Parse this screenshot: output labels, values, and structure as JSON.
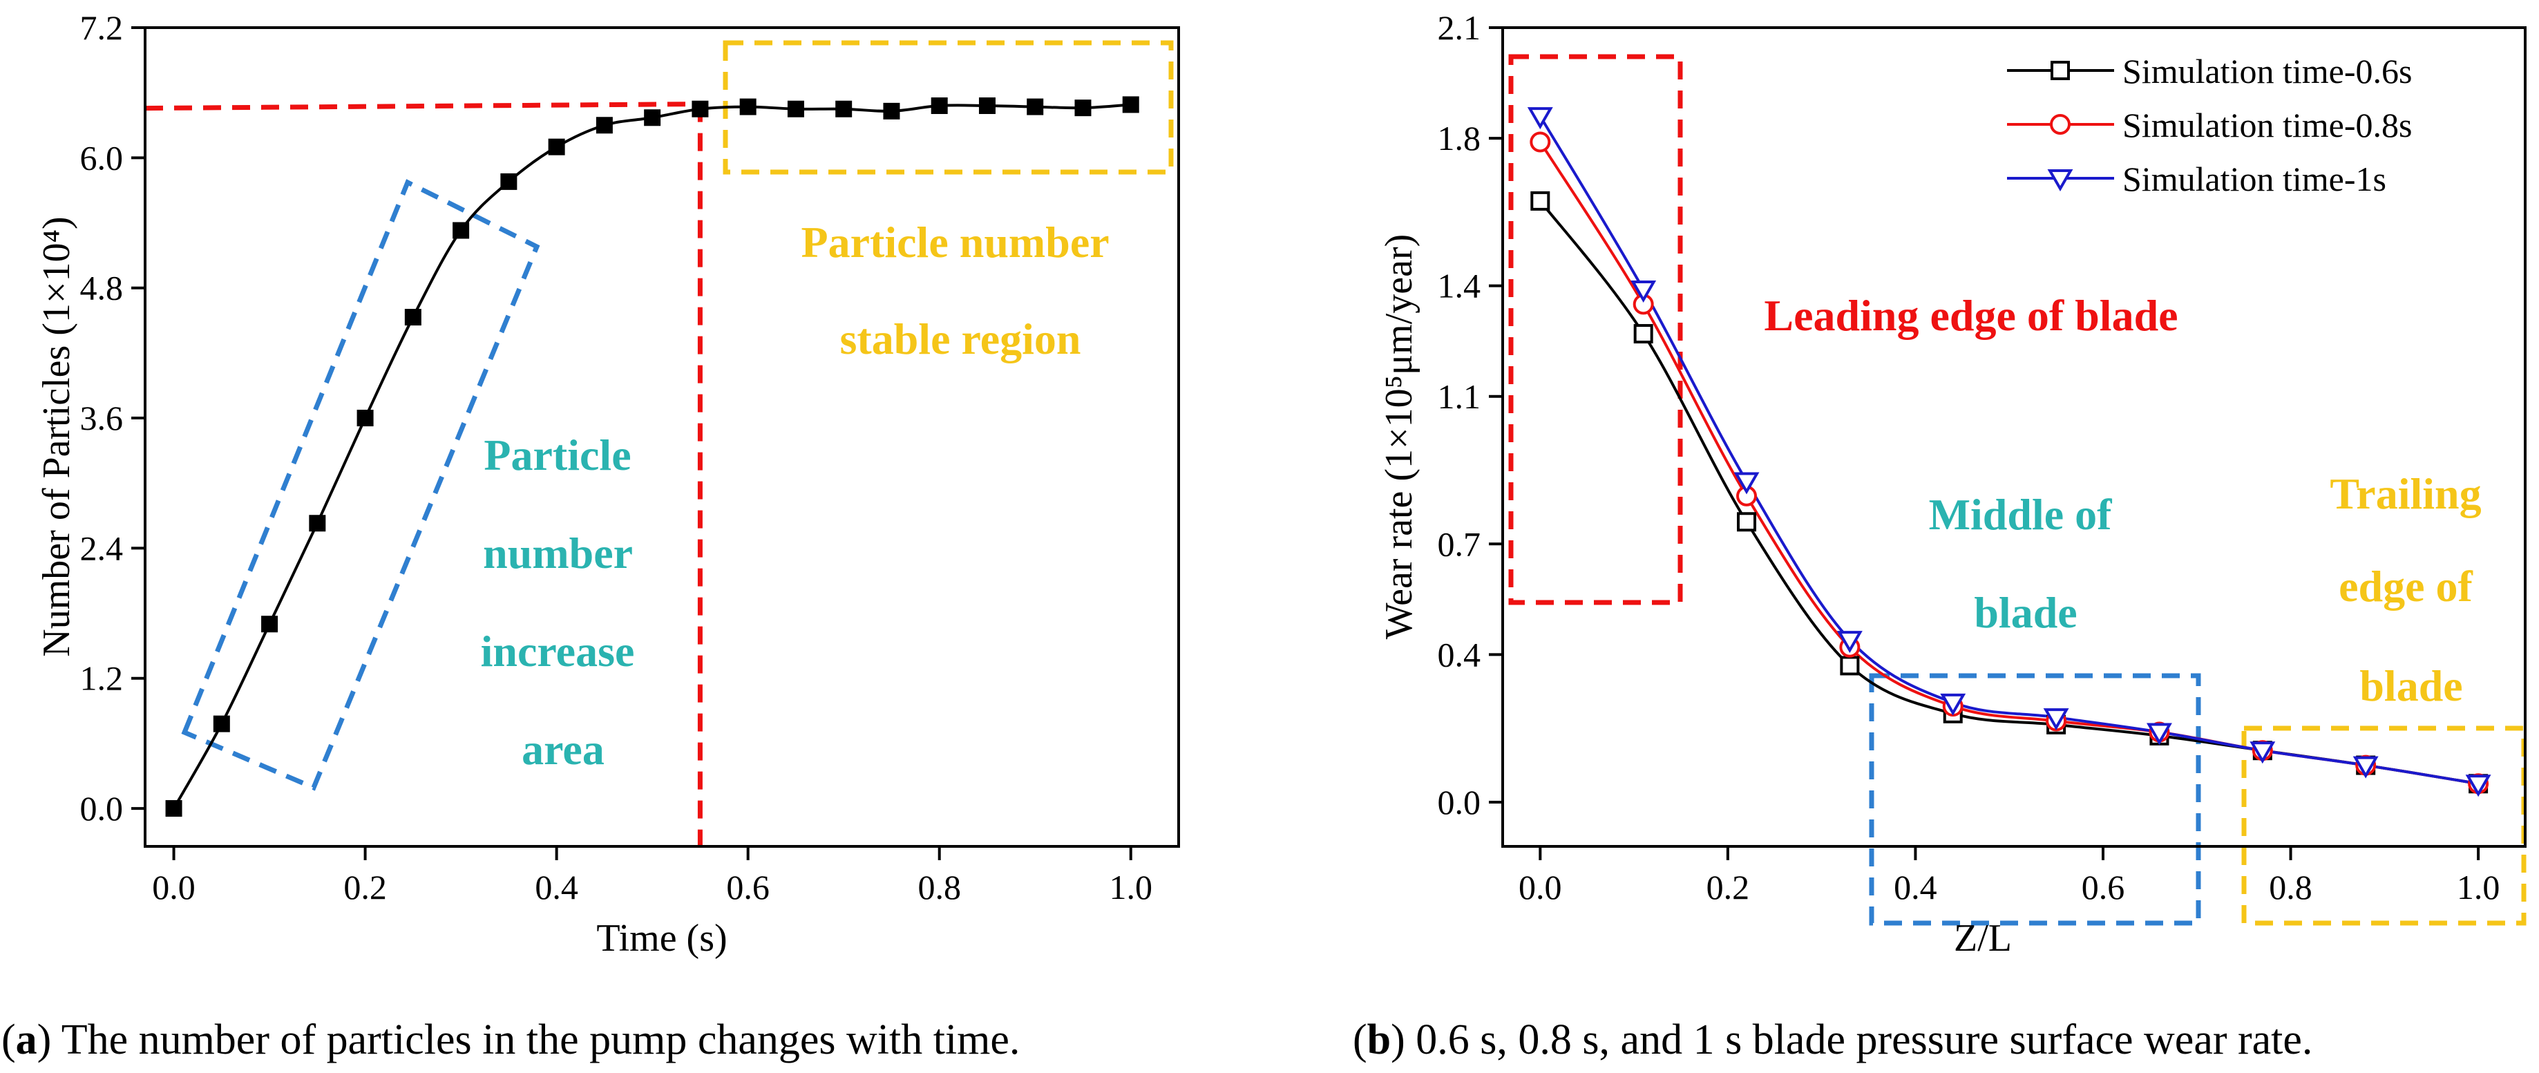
{
  "captions": {
    "a_letter": "a",
    "a_text": " The number of particles in the pump changes with time.",
    "b_letter": "b",
    "b_text": " 0.6 s, 0.8 s, and 1 s blade pressure surface wear rate."
  },
  "chart_data": [
    {
      "type": "line",
      "title": "",
      "xlabel": "Time (s)",
      "ylabel": "Number of Particles (1×10⁴)",
      "xlim": [
        -0.03,
        1.05
      ],
      "ylim": [
        -0.35,
        7.2
      ],
      "xticks": [
        0.0,
        0.2,
        0.4,
        0.6,
        0.8,
        1.0
      ],
      "yticks": [
        0.0,
        1.2,
        2.4,
        3.6,
        4.8,
        6.0,
        7.2
      ],
      "xtick_labels": [
        "0.0",
        "0.2",
        "0.4",
        "0.6",
        "0.8",
        "1.0"
      ],
      "ytick_labels": [
        "0.0",
        "1.2",
        "2.4",
        "3.6",
        "4.8",
        "6.0",
        "7.2"
      ],
      "grid": false,
      "series": [
        {
          "color": "#000000",
          "marker": "filled-square",
          "x": [
            0.0,
            0.05,
            0.1,
            0.15,
            0.2,
            0.25,
            0.3,
            0.35,
            0.4,
            0.45,
            0.5,
            0.55,
            0.6,
            0.65,
            0.7,
            0.75,
            0.8,
            0.85,
            0.9,
            0.95,
            1.0
          ],
          "y": [
            0.0,
            0.78,
            1.7,
            2.63,
            3.6,
            4.53,
            5.33,
            5.78,
            6.1,
            6.3,
            6.37,
            6.45,
            6.47,
            6.45,
            6.45,
            6.43,
            6.48,
            6.48,
            6.47,
            6.46,
            6.49
          ]
        }
      ],
      "annotations": [
        {
          "text_lines": [
            "Particle",
            "number",
            "increase",
            "area"
          ],
          "color": "#2ab3b0",
          "style": "bold"
        },
        {
          "text_lines": [
            "Particle number",
            "stable region"
          ],
          "color": "#f5c518",
          "style": "bold"
        }
      ],
      "reference_lines": {
        "color": "#ee1111",
        "dash": true,
        "horizontal_y": 6.47,
        "vertical_x": 0.55
      },
      "highlight_boxes": [
        {
          "color": "#2f7fd0",
          "region": "increase area"
        },
        {
          "color": "#f5c518",
          "region": "stable region"
        }
      ]
    },
    {
      "type": "line",
      "title": "",
      "xlabel": "Z/L",
      "ylabel": "Wear rate (1×10⁵μm/year)",
      "xlim": [
        -0.04,
        1.05
      ],
      "ylim": [
        -0.12,
        2.1
      ],
      "xticks": [
        0.0,
        0.2,
        0.4,
        0.6,
        0.8,
        1.0
      ],
      "yticks": [
        0.0,
        0.4,
        0.7,
        1.1,
        1.4,
        1.8,
        2.1
      ],
      "xtick_labels": [
        "0.0",
        "0.2",
        "0.4",
        "0.6",
        "0.8",
        "1.0"
      ],
      "ytick_labels": [
        "0.0",
        "0.4",
        "0.7",
        "1.1",
        "1.4",
        "1.8",
        "2.1"
      ],
      "grid": false,
      "legend": "top-right",
      "series": [
        {
          "name": "Simulation time-0.6s",
          "color": "#000000",
          "marker": "open-square",
          "x": [
            0.0,
            0.11,
            0.22,
            0.33,
            0.44,
            0.55,
            0.66,
            0.77,
            0.88,
            1.0
          ],
          "y": [
            1.63,
            1.27,
            0.76,
            0.37,
            0.24,
            0.21,
            0.18,
            0.14,
            0.1,
            0.05
          ]
        },
        {
          "name": "Simulation time-0.8s",
          "color": "#ee1111",
          "marker": "open-circle",
          "x": [
            0.0,
            0.11,
            0.22,
            0.33,
            0.44,
            0.55,
            0.66,
            0.77,
            0.88,
            1.0
          ],
          "y": [
            1.79,
            1.35,
            0.83,
            0.42,
            0.26,
            0.22,
            0.19,
            0.14,
            0.1,
            0.05
          ]
        },
        {
          "name": "Simulation time-1s",
          "color": "#1a1acc",
          "marker": "open-triangle-down",
          "x": [
            0.0,
            0.11,
            0.22,
            0.33,
            0.44,
            0.55,
            0.66,
            0.77,
            0.88,
            1.0
          ],
          "y": [
            1.86,
            1.39,
            0.87,
            0.44,
            0.27,
            0.23,
            0.19,
            0.14,
            0.1,
            0.05
          ]
        }
      ],
      "annotations": [
        {
          "text_lines": [
            "Leading edge of blade"
          ],
          "color": "#ee1111",
          "style": "bold"
        },
        {
          "text_lines": [
            "Middle of",
            "blade"
          ],
          "color": "#2ab3b0",
          "style": "bold"
        },
        {
          "text_lines": [
            "Trailing",
            "edge of",
            "blade"
          ],
          "color": "#f5c518",
          "style": "bold"
        }
      ],
      "highlight_boxes": [
        {
          "color": "#ee1111",
          "region": "leading edge"
        },
        {
          "color": "#2f7fd0",
          "region": "middle"
        },
        {
          "color": "#f5c518",
          "region": "trailing edge"
        }
      ]
    }
  ]
}
